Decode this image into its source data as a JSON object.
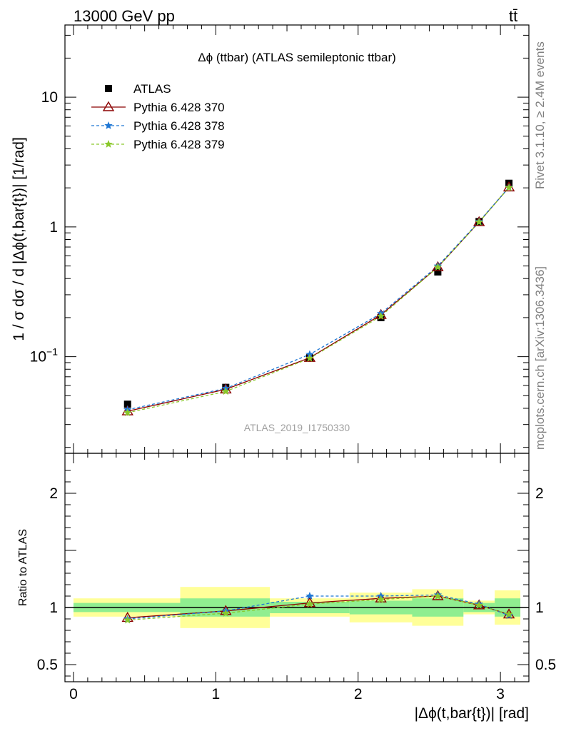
{
  "header": {
    "energy_label": "13000 GeV pp",
    "process_label": "tt̄"
  },
  "side_labels": {
    "rivet": "Rivet 3.1.10, ≥ 2.4M events",
    "source": "mcplots.cern.ch [arXiv:1306.3436]"
  },
  "chart_data": [
    {
      "type": "line",
      "panel": "main",
      "title": "Δϕ (ttbar) (ATLAS semileptonic ttbar)",
      "watermark": "ATLAS_2019_I1750330",
      "ylabel": "1 / σ dσ / d |Δϕ(t,bar{t})| [1/rad]",
      "yscale": "log",
      "ylim": [
        0.018,
        36
      ],
      "xlim": [
        -0.06,
        3.2
      ],
      "y_ticks": [
        {
          "value": 0.1,
          "base": "10",
          "exp": "−1"
        },
        {
          "value": 1,
          "label": "1"
        },
        {
          "value": 10,
          "label": "10"
        }
      ],
      "legend_position": "top-left",
      "x": [
        0.38,
        1.07,
        1.66,
        2.16,
        2.56,
        2.85,
        3.06
      ],
      "series": [
        {
          "name": "ATLAS",
          "marker": "square",
          "color": "#000000",
          "values": [
            0.043,
            0.058,
            0.098,
            0.2,
            0.45,
            1.1,
            2.17
          ]
        },
        {
          "name": "Pythia 6.428 370",
          "marker": "triangle",
          "color": "#8b0000",
          "line": "solid",
          "values": [
            0.038,
            0.056,
            0.098,
            0.21,
            0.49,
            1.09,
            2.02
          ]
        },
        {
          "name": "Pythia 6.428 378",
          "marker": "star",
          "color": "#1f77d4",
          "line": "dashed",
          "values": [
            0.039,
            0.057,
            0.104,
            0.215,
            0.5,
            1.1,
            2.02
          ]
        },
        {
          "name": "Pythia 6.428 379",
          "marker": "star",
          "color": "#8ac82a",
          "line": "dashed",
          "values": [
            0.037,
            0.054,
            0.097,
            0.205,
            0.49,
            1.09,
            2.01
          ]
        }
      ]
    },
    {
      "type": "line",
      "panel": "ratio",
      "ylabel": "Ratio to ATLAS",
      "xlabel": "|Δϕ(t,bar{t})| [rad]",
      "ylim": [
        0.35,
        2.35
      ],
      "xlim": [
        -0.06,
        3.2
      ],
      "x_ticks": [
        0,
        1,
        2,
        3
      ],
      "y_ticks": [
        0.5,
        1,
        2
      ],
      "bands": {
        "edges": [
          0,
          0.75,
          1.38,
          1.94,
          2.38,
          2.74,
          2.96,
          3.14
        ],
        "inner": [
          0.04,
          0.08,
          0.05,
          0.06,
          0.08,
          0.04,
          0.08
        ],
        "outer": [
          0.08,
          0.18,
          0.08,
          0.13,
          0.16,
          0.06,
          0.15
        ],
        "inner_color": "#90ee90",
        "outer_color": "#ffff99"
      },
      "x": [
        0.38,
        1.07,
        1.66,
        2.16,
        2.56,
        2.85,
        3.06
      ],
      "series": [
        {
          "name": "Pythia 6.428 370",
          "marker": "triangle",
          "color": "#8b0000",
          "line": "solid",
          "values": [
            0.91,
            0.97,
            1.04,
            1.08,
            1.1,
            1.02,
            0.94
          ]
        },
        {
          "name": "Pythia 6.428 378",
          "marker": "star",
          "color": "#1f77d4",
          "line": "dashed",
          "values": [
            0.9,
            0.97,
            1.1,
            1.1,
            1.11,
            1.03,
            0.93
          ]
        },
        {
          "name": "Pythia 6.428 379",
          "marker": "star",
          "color": "#8ac82a",
          "line": "dashed",
          "values": [
            0.89,
            0.95,
            1.03,
            1.07,
            1.1,
            1.02,
            0.94
          ]
        }
      ]
    }
  ]
}
